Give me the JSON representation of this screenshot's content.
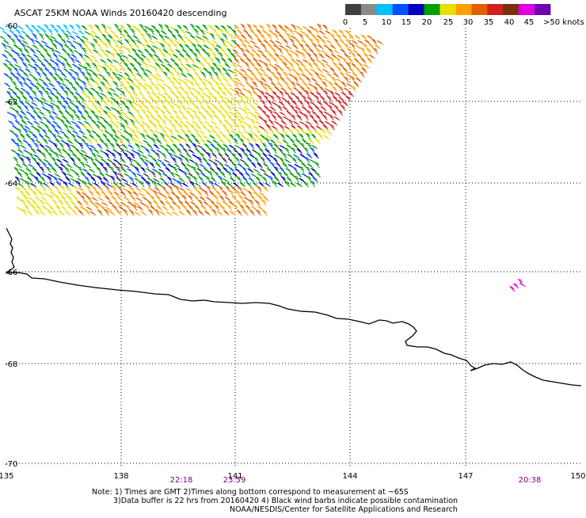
{
  "title": "ASCAT 25KM NOAA Winds 20160420 descending",
  "legend": {
    "labels": [
      "0",
      "5",
      "10",
      "15",
      "20",
      "25",
      "30",
      "35",
      "40",
      "45",
      ">50 knots"
    ],
    "colors": [
      "#404040",
      "#8a8a8a",
      "#00c0ff",
      "#0050ff",
      "#0000c0",
      "#00a000",
      "#e8e000",
      "#ffa000",
      "#e06000",
      "#d02020",
      "#7a3010",
      "#e000e0",
      "#7000b0"
    ]
  },
  "lon_ticks": [
    "135",
    "138",
    "141",
    "144",
    "147",
    "150"
  ],
  "lat_ticks": [
    "-60",
    "-62",
    "-64",
    "-66",
    "-68",
    "-70"
  ],
  "time_labels": [
    "22:18",
    "23:59",
    "20:38"
  ],
  "notes": [
    "Note: 1) Times are GMT 2)Times along bottom correspond to measurement at ~65S",
    "3)Data buffer is 22 hrs from 20160420 4) Black wind barbs indicate possible contamination",
    "NOAA/NESDIS/Center for Satellite Applications and Research"
  ],
  "icon": "wind-barb-icon"
}
